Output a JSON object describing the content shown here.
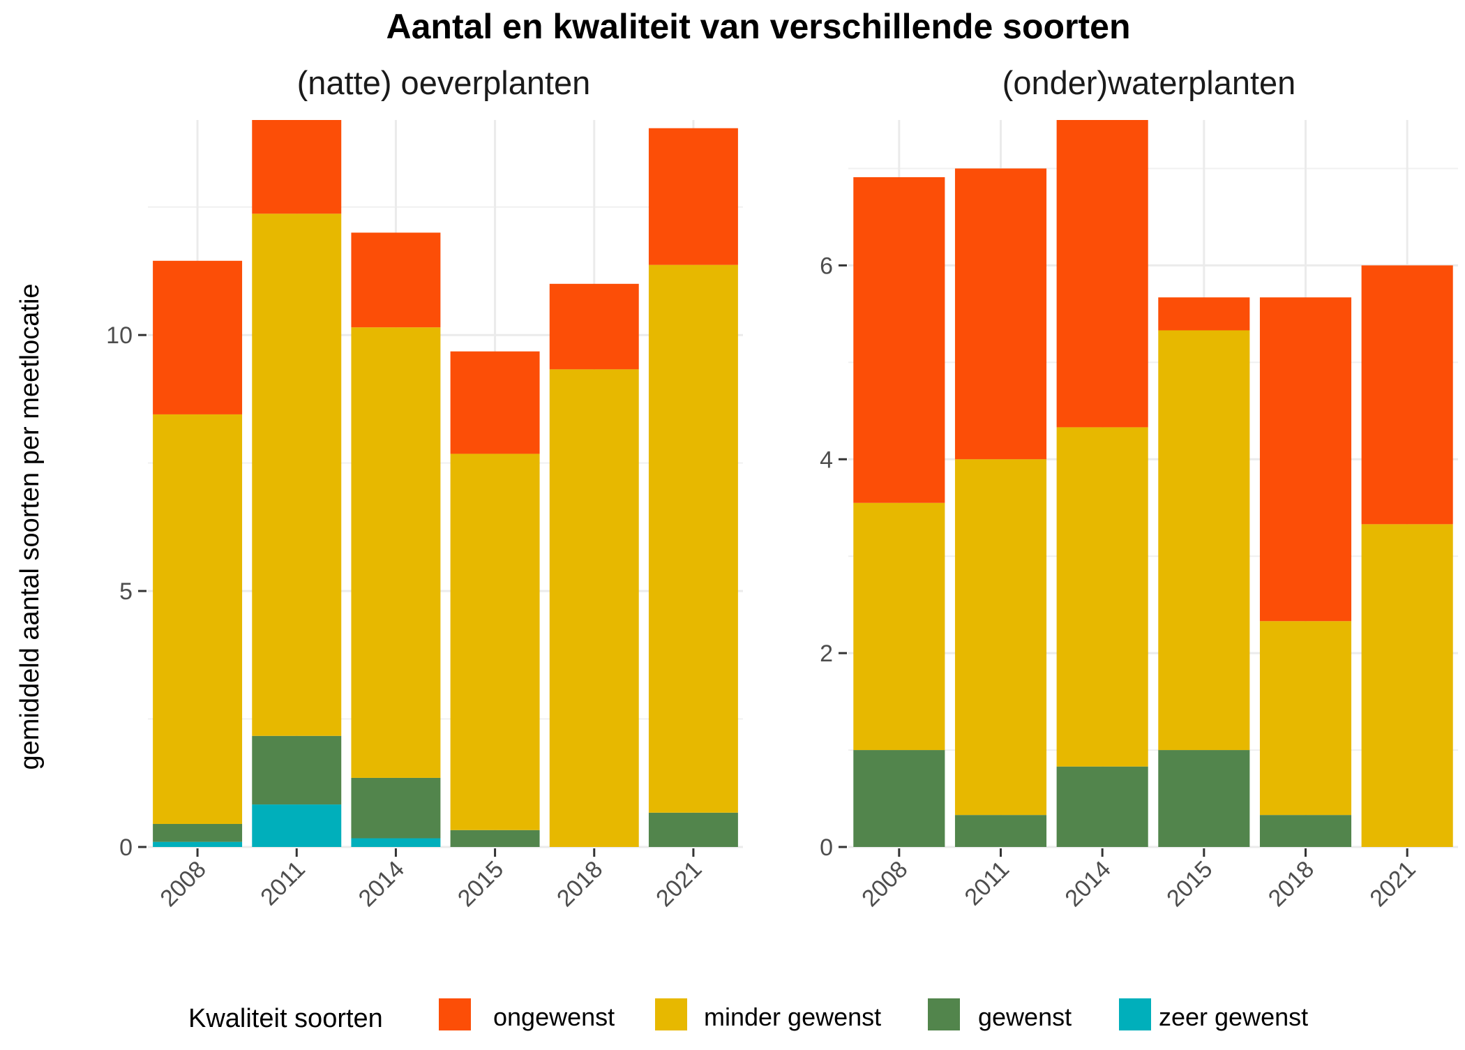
{
  "title": "Aantal en kwaliteit van verschillende soorten",
  "ylabel": "gemiddeld aantal soorten per meetlocatie",
  "legend": {
    "title": "Kwaliteit soorten",
    "items": [
      {
        "label": "ongewenst",
        "color": "#FC4E07"
      },
      {
        "label": "minder gewenst",
        "color": "#E7B800"
      },
      {
        "label": "gewenst",
        "color": "#52854C"
      },
      {
        "label": "zeer gewenst",
        "color": "#00AFBB"
      }
    ]
  },
  "chart_data": [
    {
      "type": "bar",
      "stacked": true,
      "title": "(natte) oeverplanten",
      "categories": [
        "2008",
        "2011",
        "2014",
        "2015",
        "2018",
        "2021"
      ],
      "ylim": [
        0,
        14.2
      ],
      "yticks": [
        0,
        5,
        10
      ],
      "grid": true,
      "series": [
        {
          "name": "zeer gewenst",
          "color": "#00AFBB",
          "values": [
            0.1,
            0.83,
            0.17,
            0,
            0,
            0
          ]
        },
        {
          "name": "gewenst",
          "color": "#52854C",
          "values": [
            0.35,
            1.34,
            1.18,
            0.33,
            0,
            0.67
          ]
        },
        {
          "name": "minder gewenst",
          "color": "#E7B800",
          "values": [
            8.0,
            10.2,
            8.8,
            7.35,
            9.33,
            10.7
          ]
        },
        {
          "name": "ongewenst",
          "color": "#FC4E07",
          "values": [
            3.0,
            1.83,
            1.85,
            2.0,
            1.67,
            2.67
          ]
        }
      ]
    },
    {
      "type": "bar",
      "stacked": true,
      "title": "(onder)waterplanten",
      "categories": [
        "2008",
        "2011",
        "2014",
        "2015",
        "2018",
        "2021"
      ],
      "ylim": [
        0,
        7.5
      ],
      "yticks": [
        0,
        2,
        4,
        6
      ],
      "grid": true,
      "series": [
        {
          "name": "zeer gewenst",
          "color": "#00AFBB",
          "values": [
            0,
            0,
            0,
            0,
            0,
            0
          ]
        },
        {
          "name": "gewenst",
          "color": "#52854C",
          "values": [
            1.0,
            0.33,
            0.83,
            1.0,
            0.33,
            0
          ]
        },
        {
          "name": "minder gewenst",
          "color": "#E7B800",
          "values": [
            2.55,
            3.67,
            3.5,
            4.33,
            2.0,
            3.33
          ]
        },
        {
          "name": "ongewenst",
          "color": "#FC4E07",
          "values": [
            3.36,
            3.0,
            3.17,
            0.34,
            3.34,
            2.67
          ]
        }
      ]
    }
  ]
}
